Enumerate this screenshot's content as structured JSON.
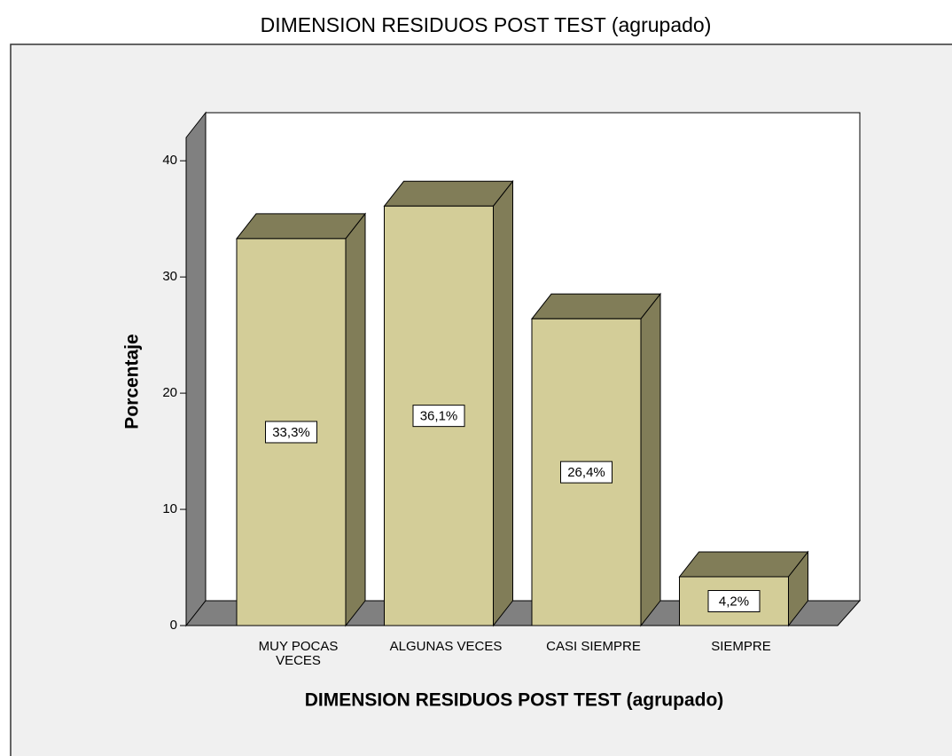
{
  "chart_data": {
    "type": "bar3d",
    "title": "DIMENSION RESIDUOS POST TEST (agrupado)",
    "xlabel": "DIMENSION RESIDUOS POST TEST (agrupado)",
    "ylabel": "Porcentaje",
    "categories": [
      "MUY POCAS VECES",
      "ALGUNAS VECES",
      "CASI SIEMPRE",
      "SIEMPRE"
    ],
    "values": [
      33.3,
      36.1,
      26.4,
      4.2
    ],
    "value_labels": [
      "33,3%",
      "36,1%",
      "26,4%",
      "4,2%"
    ],
    "color": "#d3cd98",
    "shade_color": "#817d58",
    "ylim": [
      0,
      42
    ],
    "yticks": [
      0,
      10,
      20,
      30,
      40
    ]
  }
}
